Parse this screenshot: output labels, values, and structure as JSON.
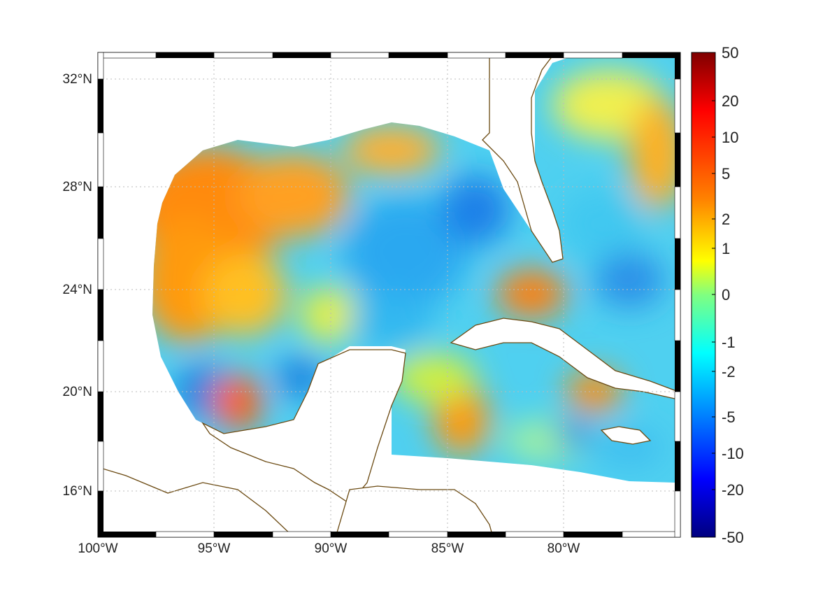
{
  "map": {
    "lon_range": [
      -100,
      -75
    ],
    "lat_range": [
      14.2,
      33
    ],
    "coast_color": "#6b4a12",
    "grid": true
  },
  "chart_data": {
    "type": "heatmap",
    "x_ticks": [
      "100°W",
      "95°W",
      "90°W",
      "85°W",
      "80°W"
    ],
    "x_tick_values": [
      -100,
      -95,
      -90,
      -85,
      -80
    ],
    "y_ticks": [
      "32°N",
      "28°N",
      "24°N",
      "20°N",
      "16°N"
    ],
    "y_tick_values": [
      32,
      28,
      24,
      20,
      16
    ],
    "colorbar": {
      "ticks": [
        "50",
        "20",
        "10",
        "5",
        "2",
        "1",
        "0",
        "-1",
        "-2",
        "-5",
        "-10",
        "-20",
        "-50"
      ],
      "colors": [
        "#7f0000",
        "#ff0000",
        "#ff8000",
        "#ffff00",
        "#00ffff",
        "#0080ff",
        "#0000ff",
        "#00007f"
      ]
    }
  }
}
